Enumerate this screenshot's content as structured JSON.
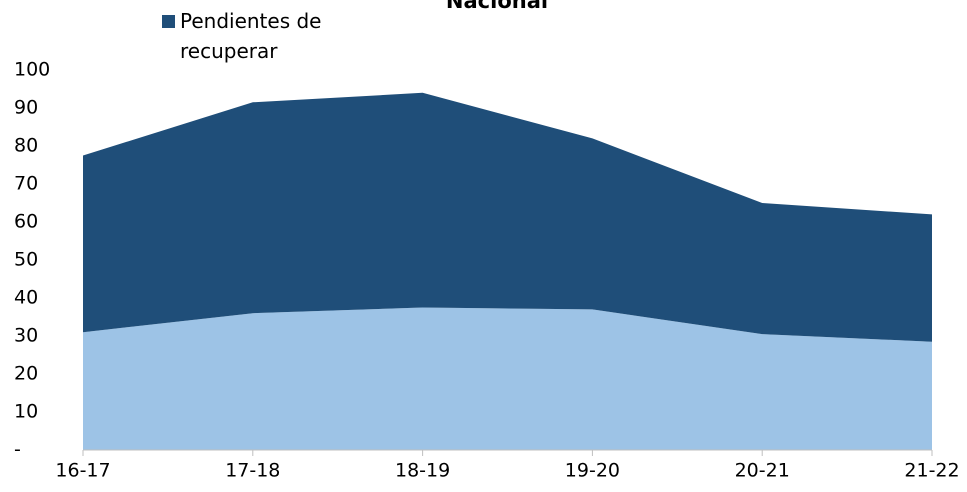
{
  "chart_data": {
    "type": "area",
    "title": "Nacional",
    "categories": [
      "16-17",
      "17-18",
      "18-19",
      "19-20",
      "20-21",
      "21-22"
    ],
    "series": [
      {
        "color": "#9dc3e6",
        "values": [
          31,
          36,
          37.5,
          37,
          30.5,
          28.5
        ]
      },
      {
        "name": "Pendientes de recuperar",
        "color": "#1f4e79",
        "values": [
          46.5,
          55.5,
          56.5,
          45,
          34.5,
          33.5
        ]
      }
    ],
    "ylim": [
      0,
      100
    ],
    "yticks": [
      {
        "value": 0,
        "label": "-"
      },
      10,
      20,
      30,
      40,
      50,
      60,
      70,
      80,
      90,
      100
    ],
    "stacked": true,
    "grid": false,
    "legend": "top-left"
  }
}
